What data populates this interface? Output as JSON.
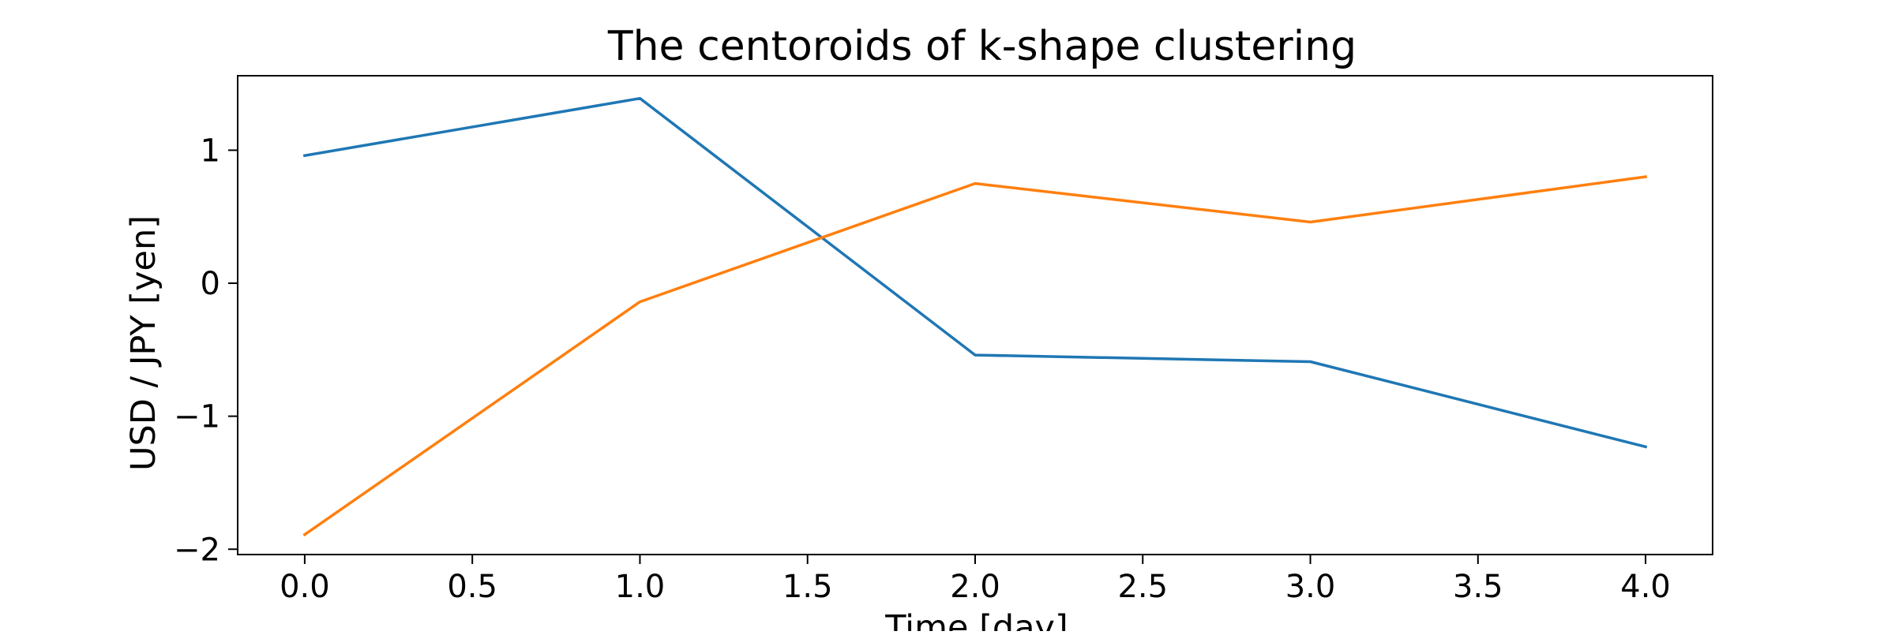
{
  "chart_data": {
    "type": "line",
    "title": "The centoroids of k-shape clustering",
    "xlabel": "Time [day]",
    "ylabel": "USD / JPY [yen]",
    "x": [
      0,
      1,
      2,
      3,
      4
    ],
    "series": [
      {
        "values": [
          0.96,
          1.39,
          -0.54,
          -0.59,
          -1.23
        ],
        "color": "#1f77b4"
      },
      {
        "values": [
          -1.89,
          -0.14,
          0.75,
          0.46,
          0.8
        ],
        "color": "#ff7f0e"
      }
    ],
    "xlim": [
      -0.2,
      4.2
    ],
    "ylim": [
      -2.04,
      1.56
    ],
    "xticks": [
      0.0,
      0.5,
      1.0,
      1.5,
      2.0,
      2.5,
      3.0,
      3.5,
      4.0
    ],
    "xtick_labels": [
      "0.0",
      "0.5",
      "1.0",
      "1.5",
      "2.0",
      "2.5",
      "3.0",
      "3.5",
      "4.0"
    ],
    "yticks": [
      -2,
      -1,
      0,
      1
    ],
    "ytick_labels": [
      "−2",
      "−1",
      "0",
      "1"
    ],
    "grid": false,
    "legend": false
  }
}
